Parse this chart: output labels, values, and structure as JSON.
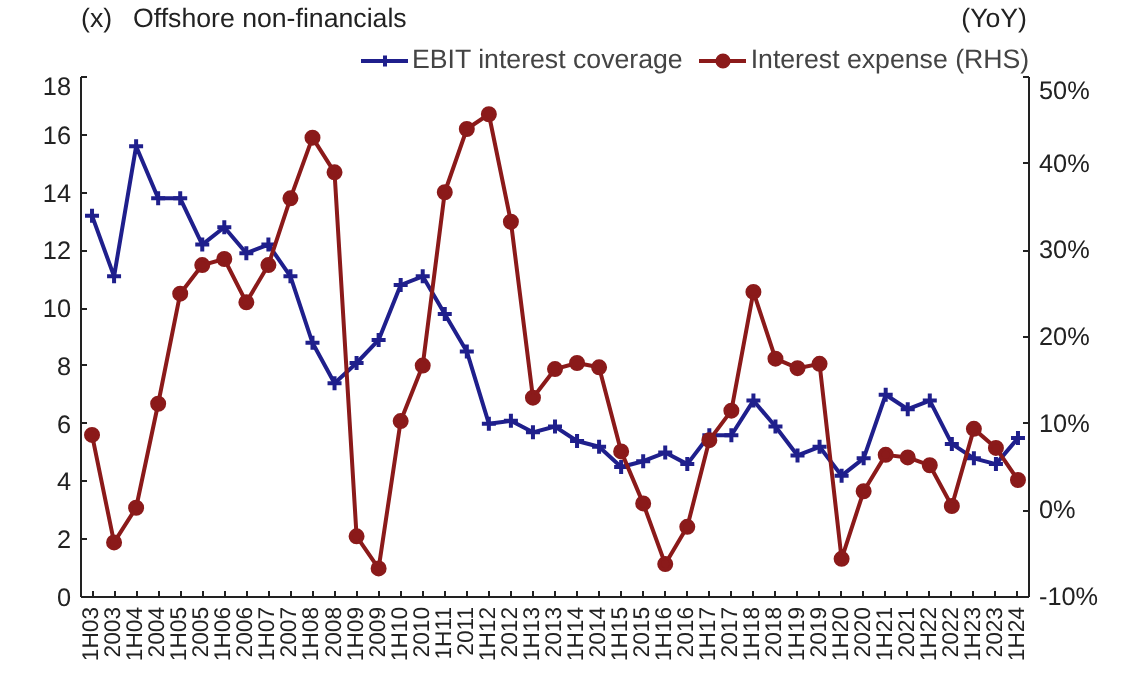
{
  "chart_data": {
    "type": "line",
    "title": "Offshore non-financials",
    "ylabel": "(x)",
    "y2label": "(YoY)",
    "categories": [
      "1H03",
      "2003",
      "1H04",
      "2004",
      "1H05",
      "2005",
      "1H06",
      "2006",
      "1H07",
      "2007",
      "1H08",
      "2008",
      "1H09",
      "2009",
      "1H10",
      "2010",
      "1H11",
      "2011",
      "1H12",
      "2012",
      "1H13",
      "2013",
      "1H14",
      "2014",
      "1H15",
      "2015",
      "1H16",
      "2016",
      "1H17",
      "2017",
      "1H18",
      "2018",
      "1H19",
      "2019",
      "1H20",
      "2020",
      "1H21",
      "2021",
      "1H22",
      "2022",
      "1H23",
      "2023",
      "1H24"
    ],
    "series": [
      {
        "name": "EBIT interest coverage",
        "color": "#1f1f8c",
        "marker": "cross",
        "values": [
          13.2,
          11.1,
          15.6,
          13.8,
          13.8,
          12.2,
          12.8,
          11.9,
          12.2,
          11.1,
          8.8,
          7.4,
          8.1,
          8.9,
          10.8,
          11.1,
          9.8,
          8.5,
          6.0,
          6.1,
          5.7,
          5.9,
          5.4,
          5.2,
          4.5,
          4.7,
          5.0,
          4.6,
          5.6,
          5.6,
          6.8,
          5.9,
          4.9,
          5.2,
          4.2,
          4.8,
          7.0,
          6.5,
          6.8,
          5.3,
          4.8,
          4.6,
          5.5
        ]
      },
      {
        "name": "Interest expense (RHS)",
        "color": "#8b1a1a",
        "marker": "circle",
        "axis": "y2",
        "values": [
          8.7,
          -3.7,
          0.3,
          12.3,
          25,
          28.3,
          29,
          24,
          28.3,
          36,
          43,
          39,
          -3,
          -6.7,
          10.3,
          16.7,
          36.7,
          44,
          45.7,
          33.3,
          13,
          16.3,
          17,
          16.5,
          6.8,
          0.8,
          -6.2,
          -1.9,
          8.1,
          11.5,
          25.2,
          17.5,
          16.4,
          16.9,
          -5.6,
          2.2,
          6.4,
          6.1,
          5.2,
          0.5,
          9.4,
          7.2,
          3.5
        ]
      }
    ],
    "ylim": [
      0,
      18
    ],
    "yticks": [
      0,
      2,
      4,
      6,
      8,
      10,
      12,
      14,
      16,
      18
    ],
    "y2lim": [
      -10,
      50
    ],
    "y2ticks": [
      {
        "value": -10,
        "label": "-10%"
      },
      {
        "value": 0,
        "label": "0%"
      },
      {
        "value": 10,
        "label": "10%"
      },
      {
        "value": 20,
        "label": "20%"
      },
      {
        "value": 30,
        "label": "30%"
      },
      {
        "value": 40,
        "label": "40%"
      },
      {
        "value": 50,
        "label": "50%"
      }
    ],
    "legend": "top",
    "grid": false
  }
}
